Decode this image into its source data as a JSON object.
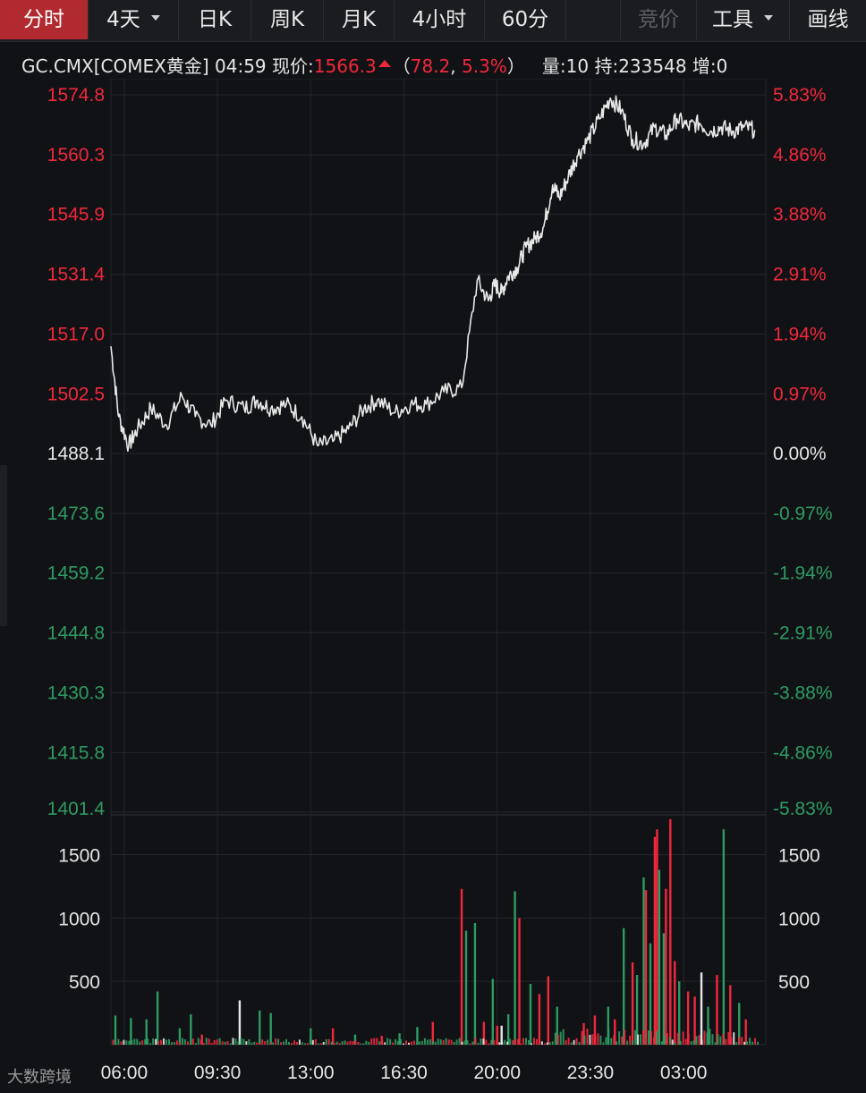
{
  "toolbar": {
    "tabs": [
      {
        "label": "分时",
        "active": true
      },
      {
        "label": "4天",
        "dropdown": true
      },
      {
        "label": "日K"
      },
      {
        "label": "周K"
      },
      {
        "label": "月K"
      },
      {
        "label": "4小时"
      },
      {
        "label": "60分"
      }
    ],
    "auction_label": "竞价",
    "tools_label": "工具",
    "draw_label": "画线"
  },
  "quote": {
    "symbol": "GC.CMX[COMEX黄金]",
    "time": "04:59",
    "price_label": "现价:",
    "price": "1566.3",
    "change": "78.2",
    "change_pct": "5.3%",
    "open_paren": "（",
    "comma": ",",
    "close_paren": "）",
    "volume_label": "量:",
    "volume": "10",
    "open_interest_label": "持:",
    "open_interest": "233548",
    "increase_label": "增:",
    "increase": "0"
  },
  "colors": {
    "up": "#f0283c",
    "down": "#2e9b63",
    "neutral": "#e6e6e6",
    "grid": "#25262b",
    "line": "#e8e8e8"
  },
  "chart_data": [
    {
      "type": "line",
      "x_ticks": [
        "06:00",
        "09:30",
        "13:00",
        "16:30",
        "20:00",
        "23:30",
        "03:00"
      ],
      "y_ticks_left": [
        "1574.8",
        "1560.3",
        "1545.9",
        "1531.4",
        "1517.0",
        "1502.5",
        "1488.1",
        "1473.6",
        "1459.2",
        "1444.8",
        "1430.3",
        "1415.8",
        "1401.4"
      ],
      "y_ticks_right": [
        "5.83%",
        "4.86%",
        "3.88%",
        "2.91%",
        "1.94%",
        "0.97%",
        "0.00%",
        "-0.97%",
        "-1.94%",
        "-2.91%",
        "-3.88%",
        "-4.86%",
        "-5.83%"
      ],
      "ylim": [
        1401.4,
        1574.8
      ],
      "baseline": 1488.1,
      "series": [
        {
          "x": [
            0.0,
            0.35,
            0.8,
            1.2,
            1.8,
            2.5,
            3.2,
            3.8,
            4.5,
            5.2,
            6.0,
            6.6,
            7.2,
            7.9,
            8.6,
            9.3,
            10.0,
            10.7,
            11.4,
            12.0,
            12.8,
            13.5,
            14.2,
            15.0,
            15.8,
            16.5,
            17.0,
            17.3,
            17.6,
            17.9,
            18.3,
            18.7,
            19.1,
            19.5,
            19.9,
            20.2,
            20.6,
            21.0,
            21.5,
            22.0,
            22.5,
            23.0,
            23.5,
            24.0,
            24.5,
            25.0,
            25.5,
            26.0,
            26.5,
            27.0,
            27.5,
            28.0,
            28.5,
            29.0
          ],
          "y": [
            1514,
            1497,
            1490,
            1494,
            1499,
            1495,
            1502,
            1497,
            1495,
            1501,
            1499,
            1501,
            1499,
            1500,
            1497,
            1490,
            1491,
            1494,
            1499,
            1501,
            1498,
            1500,
            1500,
            1503,
            1504,
            1530,
            1525,
            1529,
            1527,
            1531,
            1533,
            1538,
            1540,
            1543,
            1553,
            1550,
            1555,
            1560,
            1564,
            1569,
            1574,
            1571,
            1564,
            1563,
            1567,
            1565,
            1569,
            1567,
            1568,
            1566,
            1567,
            1566,
            1567,
            1566.3
          ]
        }
      ]
    },
    {
      "type": "bar",
      "name": "volume",
      "y_ticks": [
        "1500",
        "1000",
        "500"
      ],
      "ylim": [
        0,
        1800
      ],
      "bars": [
        {
          "t": 0.2,
          "v": 230,
          "c": "down"
        },
        {
          "t": 0.9,
          "v": 210,
          "c": "down"
        },
        {
          "t": 1.6,
          "v": 200,
          "c": "down"
        },
        {
          "t": 2.1,
          "v": 420,
          "c": "down"
        },
        {
          "t": 3.1,
          "v": 130,
          "c": "down"
        },
        {
          "t": 3.6,
          "v": 240,
          "c": "down"
        },
        {
          "t": 4.1,
          "v": 80,
          "c": "up"
        },
        {
          "t": 5.8,
          "v": 350,
          "c": "neutral"
        },
        {
          "t": 6.7,
          "v": 270,
          "c": "down"
        },
        {
          "t": 7.2,
          "v": 250,
          "c": "down"
        },
        {
          "t": 9.0,
          "v": 130,
          "c": "down"
        },
        {
          "t": 10.0,
          "v": 130,
          "c": "up"
        },
        {
          "t": 11.0,
          "v": 80,
          "c": "down"
        },
        {
          "t": 12.2,
          "v": 70,
          "c": "up"
        },
        {
          "t": 13.0,
          "v": 90,
          "c": "down"
        },
        {
          "t": 13.8,
          "v": 140,
          "c": "down"
        },
        {
          "t": 14.5,
          "v": 180,
          "c": "up"
        },
        {
          "t": 15.8,
          "v": 1230,
          "c": "up"
        },
        {
          "t": 16.0,
          "v": 900,
          "c": "down"
        },
        {
          "t": 16.4,
          "v": 960,
          "c": "down"
        },
        {
          "t": 16.8,
          "v": 180,
          "c": "up"
        },
        {
          "t": 17.2,
          "v": 520,
          "c": "down"
        },
        {
          "t": 17.4,
          "v": 150,
          "c": "up"
        },
        {
          "t": 17.6,
          "v": 150,
          "c": "neutral"
        },
        {
          "t": 17.9,
          "v": 240,
          "c": "down"
        },
        {
          "t": 18.2,
          "v": 1210,
          "c": "down"
        },
        {
          "t": 18.4,
          "v": 1000,
          "c": "up"
        },
        {
          "t": 18.9,
          "v": 480,
          "c": "down"
        },
        {
          "t": 19.3,
          "v": 400,
          "c": "up"
        },
        {
          "t": 19.7,
          "v": 540,
          "c": "up"
        },
        {
          "t": 20.1,
          "v": 300,
          "c": "down"
        },
        {
          "t": 21.3,
          "v": 170,
          "c": "up"
        },
        {
          "t": 21.8,
          "v": 230,
          "c": "up"
        },
        {
          "t": 22.4,
          "v": 300,
          "c": "down"
        },
        {
          "t": 22.7,
          "v": 200,
          "c": "up"
        },
        {
          "t": 23.1,
          "v": 920,
          "c": "down"
        },
        {
          "t": 23.5,
          "v": 650,
          "c": "up"
        },
        {
          "t": 23.7,
          "v": 550,
          "c": "down"
        },
        {
          "t": 24.0,
          "v": 1320,
          "c": "down"
        },
        {
          "t": 24.1,
          "v": 1220,
          "c": "up"
        },
        {
          "t": 24.3,
          "v": 800,
          "c": "down"
        },
        {
          "t": 24.5,
          "v": 1640,
          "c": "up"
        },
        {
          "t": 24.6,
          "v": 1700,
          "c": "up"
        },
        {
          "t": 24.7,
          "v": 1380,
          "c": "down"
        },
        {
          "t": 24.9,
          "v": 880,
          "c": "down"
        },
        {
          "t": 25.0,
          "v": 1230,
          "c": "up"
        },
        {
          "t": 25.2,
          "v": 1780,
          "c": "up"
        },
        {
          "t": 25.4,
          "v": 660,
          "c": "up"
        },
        {
          "t": 25.6,
          "v": 500,
          "c": "down"
        },
        {
          "t": 26.0,
          "v": 420,
          "c": "up"
        },
        {
          "t": 26.3,
          "v": 380,
          "c": "up"
        },
        {
          "t": 26.6,
          "v": 570,
          "c": "neutral"
        },
        {
          "t": 26.9,
          "v": 300,
          "c": "down"
        },
        {
          "t": 27.3,
          "v": 550,
          "c": "up"
        },
        {
          "t": 27.6,
          "v": 1700,
          "c": "down"
        },
        {
          "t": 27.9,
          "v": 470,
          "c": "up"
        },
        {
          "t": 28.3,
          "v": 330,
          "c": "down"
        },
        {
          "t": 28.6,
          "v": 200,
          "c": "up"
        }
      ]
    }
  ],
  "watermark": "大数跨境"
}
